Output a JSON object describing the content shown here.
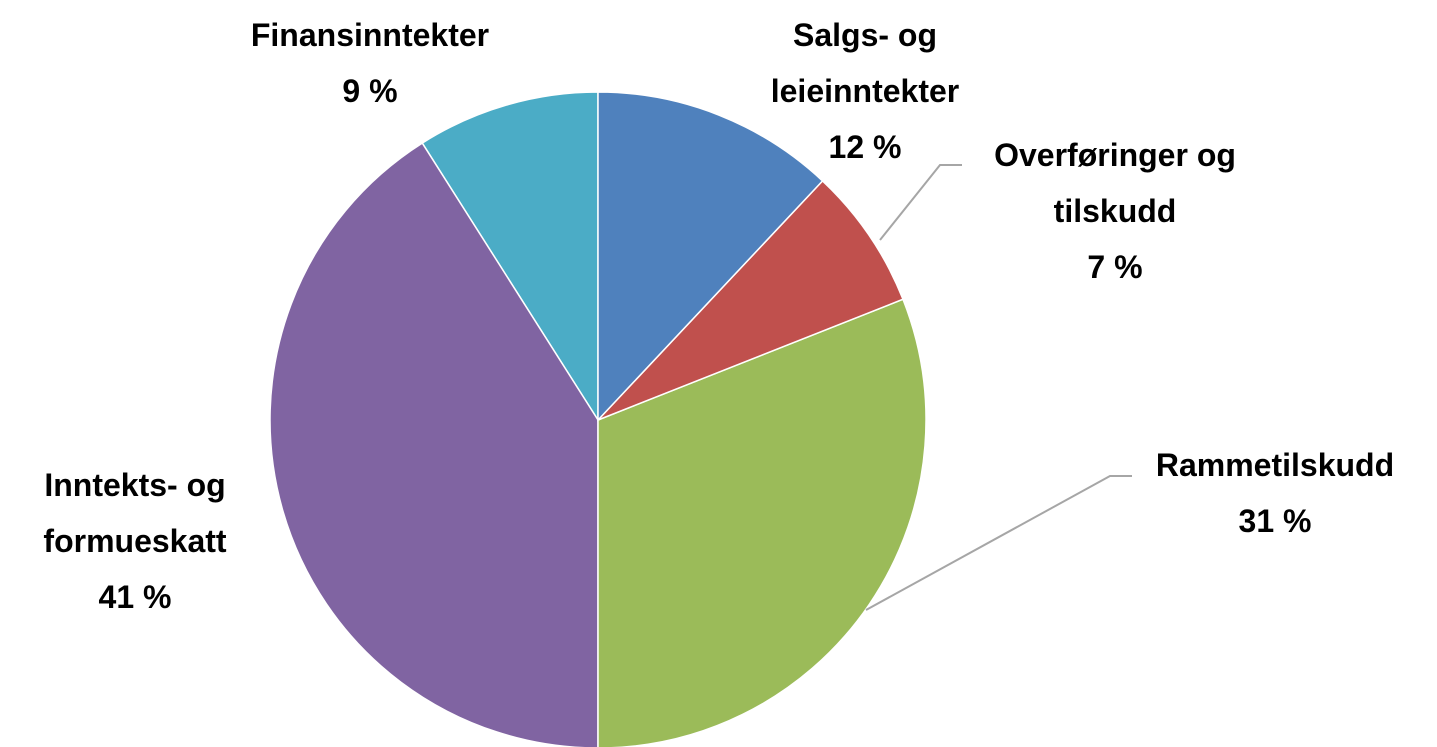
{
  "chart_data": {
    "type": "pie",
    "categories": [
      "Salgs- og leieinntekter",
      "Overføringer og tilskudd",
      "Rammetilskudd",
      "Inntekts- og formueskatt",
      "Finansinntekter"
    ],
    "values": [
      12,
      7,
      31,
      41,
      9
    ],
    "value_labels": [
      "12 %",
      "7 %",
      "31 %",
      "41 %",
      "9 %"
    ],
    "colors": [
      "#4f81bd",
      "#c0504d",
      "#9bbb59",
      "#8064a2",
      "#4bacc6"
    ]
  }
}
